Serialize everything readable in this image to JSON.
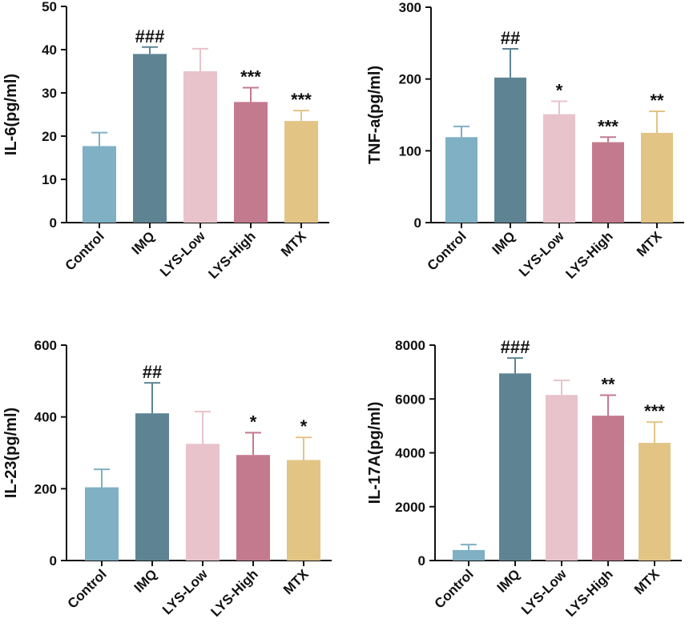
{
  "colors": {
    "Control": "#7fb0c4",
    "IMQ": "#5e8494",
    "LYS-Low": "#e8c3cb",
    "LYS-High": "#c47a8e",
    "MTX": "#e2c585",
    "axis": "#111111"
  },
  "chart_data": [
    {
      "type": "bar",
      "categories": [
        "Control",
        "IMQ",
        "LYS-Low",
        "LYS-High",
        "MTX"
      ],
      "values": [
        17.7,
        39.0,
        35.0,
        27.9,
        23.5
      ],
      "errors": [
        3.1,
        1.6,
        5.2,
        3.3,
        2.4
      ],
      "significance": [
        "",
        "###",
        "",
        "***",
        "***"
      ],
      "ylabel": "IL-6(pg/ml)",
      "xlabel": "",
      "title": "",
      "ylim": [
        0,
        50
      ],
      "yticks": [
        0,
        10,
        20,
        30,
        40,
        50
      ],
      "ytick_labels": [
        "0",
        "10",
        "20",
        "30",
        "40",
        "50"
      ]
    },
    {
      "type": "bar",
      "categories": [
        "Control",
        "IMQ",
        "LYS-Low",
        "LYS-High",
        "MTX"
      ],
      "values": [
        119,
        202,
        151,
        112,
        125
      ],
      "errors": [
        15,
        40,
        18,
        7,
        30
      ],
      "significance": [
        "",
        "##",
        "*",
        "***",
        "**"
      ],
      "ylabel": "TNF-a(pg/ml)",
      "xlabel": "",
      "title": "",
      "ylim": [
        0,
        300
      ],
      "yticks": [
        0,
        100,
        200,
        300
      ],
      "ytick_labels": [
        "0",
        "100",
        "200",
        "300"
      ]
    },
    {
      "type": "bar",
      "categories": [
        "Control",
        "IMQ",
        "LYS-Low",
        "LYS-High",
        "MTX"
      ],
      "values": [
        204,
        410,
        325,
        294,
        280
      ],
      "errors": [
        50,
        85,
        90,
        62,
        63
      ],
      "significance": [
        "",
        "##",
        "",
        "*",
        "*"
      ],
      "ylabel": "IL-23(pg/ml)",
      "xlabel": "",
      "title": "",
      "ylim": [
        0,
        600
      ],
      "yticks": [
        0,
        200,
        400,
        600
      ],
      "ytick_labels": [
        "0",
        "200",
        "400",
        "600"
      ]
    },
    {
      "type": "bar",
      "categories": [
        "Control",
        "IMQ",
        "LYS-Low",
        "LYS-High",
        "MTX"
      ],
      "values": [
        390,
        6950,
        6150,
        5380,
        4370
      ],
      "errors": [
        200,
        570,
        540,
        760,
        770
      ],
      "significance": [
        "",
        "###",
        "",
        "**",
        "***"
      ],
      "ylabel": "IL-17A(pg/ml)",
      "xlabel": "",
      "title": "",
      "ylim": [
        0,
        8000
      ],
      "yticks": [
        0,
        2000,
        4000,
        6000,
        8000
      ],
      "ytick_labels": [
        "0",
        "2000",
        "4000",
        "6000",
        "8000"
      ]
    }
  ]
}
